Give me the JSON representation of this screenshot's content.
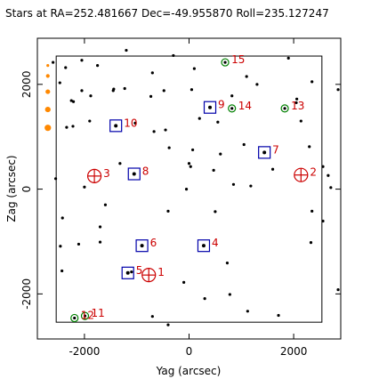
{
  "chart_data": {
    "type": "scatter",
    "title": "Stars at RA=252.481667 Dec=-49.955870 Roll=235.127247",
    "xlabel": "Yag (arcsec)",
    "ylabel": "Zag (arcsec)",
    "xlim": [
      -2900,
      2900
    ],
    "ylim": [
      -2860,
      2880
    ],
    "x_ticks": [
      -2000,
      0,
      2000
    ],
    "y_ticks": [
      -2000,
      0,
      2000
    ],
    "x_tick_labels": [
      "-2000",
      "0",
      "2000"
    ],
    "y_tick_labels": [
      "-2000",
      "0",
      "2000"
    ],
    "ccd_box": {
      "y_min": -2540,
      "y_max": 2540,
      "z_min": -2540,
      "z_max": 2540
    },
    "colors": {
      "guide": "#0000aa",
      "acq": "#008000",
      "mon": "#cc0000",
      "star": "#000000",
      "edge": "#ff8800"
    },
    "guide_stars": [
      {
        "id": "4",
        "y": 280,
        "z": -1080
      },
      {
        "id": "5",
        "y": -1170,
        "z": -1600
      },
      {
        "id": "6",
        "y": -900,
        "z": -1080
      },
      {
        "id": "7",
        "y": 1440,
        "z": 700
      },
      {
        "id": "8",
        "y": -1050,
        "z": 290
      },
      {
        "id": "9",
        "y": 400,
        "z": 1560
      },
      {
        "id": "10",
        "y": -1400,
        "z": 1210
      }
    ],
    "acq_stars": [
      {
        "id": "11",
        "y": -1990,
        "z": -2420
      },
      {
        "id": "12",
        "y": -2190,
        "z": -2460
      },
      {
        "id": "13",
        "y": 1830,
        "z": 1540
      },
      {
        "id": "14",
        "y": 820,
        "z": 1540
      },
      {
        "id": "15",
        "y": 690,
        "z": 2420
      }
    ],
    "mon_windows": [
      {
        "id": "1",
        "y": -770,
        "z": -1640
      },
      {
        "id": "2",
        "y": 2140,
        "z": 270
      },
      {
        "id": "3",
        "y": -1810,
        "z": 250
      }
    ],
    "field_stars": [
      {
        "y": -2600,
        "z": 2420
      },
      {
        "y": -2360,
        "z": 2320
      },
      {
        "y": -2050,
        "z": 2460
      },
      {
        "y": -1750,
        "z": 2360
      },
      {
        "y": -1200,
        "z": 2650
      },
      {
        "y": -700,
        "z": 2220
      },
      {
        "y": -300,
        "z": 2550
      },
      {
        "y": 100,
        "z": 2300
      },
      {
        "y": 1100,
        "z": 2150
      },
      {
        "y": 1900,
        "z": 2500
      },
      {
        "y": 2350,
        "z": 2050
      },
      {
        "y": 2850,
        "z": 1900
      },
      {
        "y": -2470,
        "z": 2030
      },
      {
        "y": -2250,
        "z": 1690
      },
      {
        "y": -2210,
        "z": 1670
      },
      {
        "y": -2050,
        "z": 1880
      },
      {
        "y": -1880,
        "z": 1780
      },
      {
        "y": -1440,
        "z": 1910
      },
      {
        "y": -1450,
        "z": 1880
      },
      {
        "y": -1230,
        "z": 1920
      },
      {
        "y": -730,
        "z": 1770
      },
      {
        "y": -480,
        "z": 1880
      },
      {
        "y": 50,
        "z": 1900
      },
      {
        "y": 820,
        "z": 1780
      },
      {
        "y": 1300,
        "z": 2000
      },
      {
        "y": 2060,
        "z": 1720
      },
      {
        "y": 2050,
        "z": 1650
      },
      {
        "y": -2220,
        "z": 1200
      },
      {
        "y": -2340,
        "z": 1180
      },
      {
        "y": -1900,
        "z": 1300
      },
      {
        "y": -1030,
        "z": 1260
      },
      {
        "y": -670,
        "z": 1100
      },
      {
        "y": -450,
        "z": 1130
      },
      {
        "y": 200,
        "z": 1350
      },
      {
        "y": 550,
        "z": 1280
      },
      {
        "y": 2140,
        "z": 1300
      },
      {
        "y": -380,
        "z": 790
      },
      {
        "y": 70,
        "z": 750
      },
      {
        "y": 600,
        "z": 670
      },
      {
        "y": 1050,
        "z": 850
      },
      {
        "y": 2300,
        "z": 810
      },
      {
        "y": -1320,
        "z": 490
      },
      {
        "y": 0,
        "z": 490
      },
      {
        "y": 30,
        "z": 430
      },
      {
        "y": 470,
        "z": 360
      },
      {
        "y": 1600,
        "z": 380
      },
      {
        "y": 2560,
        "z": 430
      },
      {
        "y": 2660,
        "z": 260
      },
      {
        "y": -2550,
        "z": 200
      },
      {
        "y": -2000,
        "z": 40
      },
      {
        "y": -50,
        "z": 0
      },
      {
        "y": 850,
        "z": 90
      },
      {
        "y": 1180,
        "z": 60
      },
      {
        "y": 2710,
        "z": 30
      },
      {
        "y": -1600,
        "z": -300
      },
      {
        "y": -400,
        "z": -420
      },
      {
        "y": 500,
        "z": -430
      },
      {
        "y": 2350,
        "z": -420
      },
      {
        "y": 2560,
        "z": -610
      },
      {
        "y": -2420,
        "z": -550
      },
      {
        "y": -1700,
        "z": -720
      },
      {
        "y": -2460,
        "z": -1090
      },
      {
        "y": -2110,
        "z": -1050
      },
      {
        "y": -1700,
        "z": -1010
      },
      {
        "y": 2330,
        "z": -1020
      },
      {
        "y": -2430,
        "z": -1560
      },
      {
        "y": 730,
        "z": -1410
      },
      {
        "y": -1100,
        "z": -1580
      },
      {
        "y": -100,
        "z": -1780
      },
      {
        "y": 780,
        "z": -2010
      },
      {
        "y": 300,
        "z": -2090
      },
      {
        "y": -700,
        "z": -2430
      },
      {
        "y": -400,
        "z": -2590
      },
      {
        "y": 1120,
        "z": -2330
      },
      {
        "y": 1710,
        "z": -2410
      },
      {
        "y": 2850,
        "z": -1920
      }
    ],
    "edge_markers": [
      {
        "y": -2700,
        "z": 2360
      },
      {
        "y": -2700,
        "z": 2160
      },
      {
        "y": -2700,
        "z": 1860
      },
      {
        "y": -2700,
        "z": 1520
      },
      {
        "y": -2700,
        "z": 1170
      }
    ]
  }
}
